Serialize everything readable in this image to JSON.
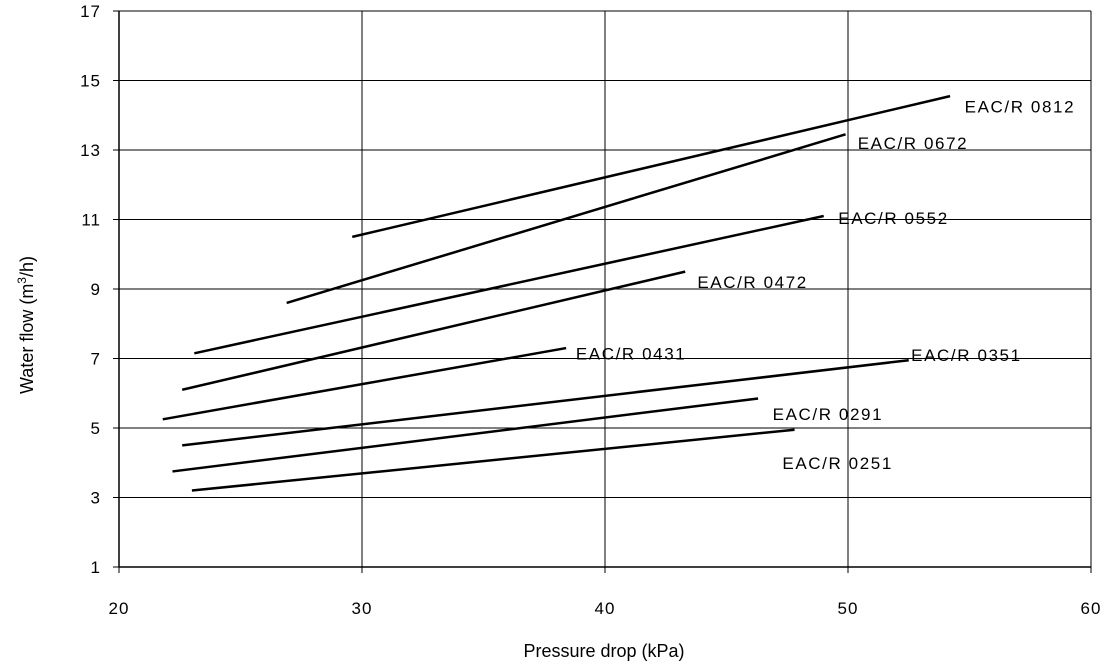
{
  "chart_data": {
    "type": "line",
    "title": "",
    "xlabel": "Pressure drop (kPa)",
    "ylabel_main": "Water flow (m",
    "ylabel_sup": "3",
    "ylabel_end": "/h)",
    "xlim": [
      20,
      60
    ],
    "ylim": [
      1,
      17
    ],
    "xticks": [
      20,
      30,
      40,
      50,
      60
    ],
    "yticks": [
      1,
      3,
      5,
      7,
      9,
      11,
      13,
      15,
      17
    ],
    "grid": true,
    "legend": "none",
    "series": [
      {
        "name": "EAC/R 0812",
        "x": [
          29.6,
          54.2
        ],
        "y": [
          10.5,
          14.55
        ],
        "label_at": [
          54.8,
          14.25
        ]
      },
      {
        "name": "EAC/R 0672",
        "x": [
          26.9,
          49.9
        ],
        "y": [
          8.6,
          13.45
        ],
        "label_at": [
          50.4,
          13.2
        ]
      },
      {
        "name": "EAC/R 0552",
        "x": [
          23.1,
          49.0
        ],
        "y": [
          7.15,
          11.1
        ],
        "label_at": [
          49.6,
          11.05
        ]
      },
      {
        "name": "EAC/R 0472",
        "x": [
          22.6,
          43.3
        ],
        "y": [
          6.1,
          9.5
        ],
        "label_at": [
          43.8,
          9.2
        ]
      },
      {
        "name": "EAC/R 0431",
        "x": [
          21.8,
          38.4
        ],
        "y": [
          5.25,
          7.3
        ],
        "label_at": [
          38.8,
          7.15
        ]
      },
      {
        "name": "EAC/R 0351",
        "x": [
          22.6,
          52.5
        ],
        "y": [
          4.5,
          6.95
        ],
        "label_at": [
          52.6,
          7.1
        ]
      },
      {
        "name": "EAC/R 0291",
        "x": [
          22.2,
          46.3
        ],
        "y": [
          3.75,
          5.85
        ],
        "label_at": [
          46.9,
          5.4
        ]
      },
      {
        "name": "EAC/R 0251",
        "x": [
          23.0,
          47.8
        ],
        "y": [
          3.2,
          4.95
        ],
        "label_at": [
          47.3,
          4.0
        ]
      }
    ]
  }
}
